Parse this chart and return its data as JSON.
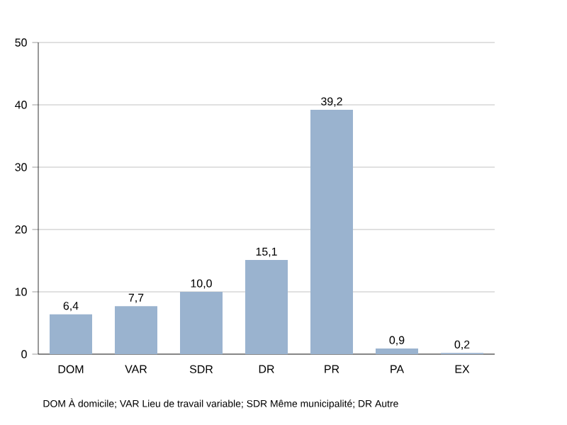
{
  "chart_data": {
    "type": "bar",
    "categories": [
      "DOM",
      "VAR",
      "SDR",
      "DR",
      "PR",
      "PA",
      "EX"
    ],
    "values": [
      6.4,
      7.7,
      10.0,
      15.1,
      39.2,
      0.9,
      0.2
    ],
    "value_labels": [
      "6,4",
      "7,7",
      "10,0",
      "15,1",
      "39,2",
      "0,9",
      "0,2"
    ],
    "color": "#9ab3cf",
    "ylim": [
      0,
      50
    ],
    "yticks": [
      0,
      10,
      20,
      30,
      40,
      50
    ],
    "grid": "y",
    "annotations": [
      "DOM À domicile; VAR Lieu de travail variable; SDR Même municipalité; DR Autre"
    ]
  }
}
